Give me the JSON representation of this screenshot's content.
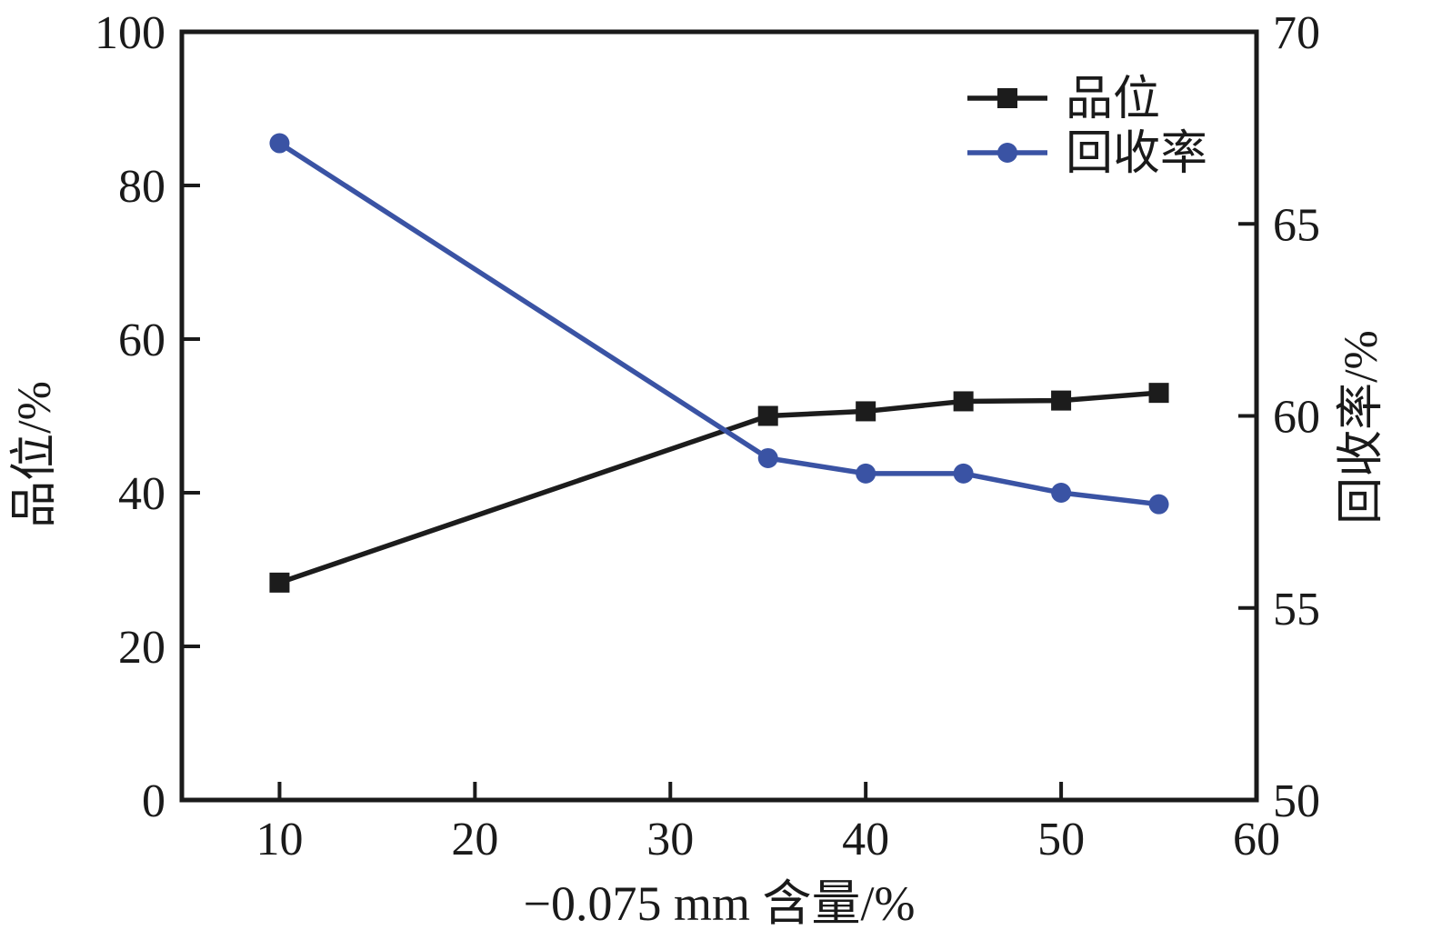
{
  "chart_data": {
    "type": "line",
    "title": "",
    "xlabel": "−0.075 mm 含量/%",
    "ylabel_left": "品位/%",
    "ylabel_right": "回收率/%",
    "xlim": [
      5,
      60
    ],
    "ylim_left": [
      0,
      100
    ],
    "ylim_right": [
      50,
      70
    ],
    "xticks": [
      10,
      20,
      30,
      40,
      50,
      60
    ],
    "yticks_left": [
      0,
      20,
      40,
      60,
      80,
      100
    ],
    "yticks_right": [
      50,
      55,
      60,
      65,
      70
    ],
    "grid": false,
    "legend_position": "upper-right-inside",
    "x": [
      10,
      35,
      40,
      45,
      50,
      55
    ],
    "series": [
      {
        "key": "grade",
        "name": "品位",
        "axis": "left",
        "marker": "square",
        "color": "#1c1c1c",
        "values": [
          28.3,
          50.0,
          50.6,
          51.9,
          52.0,
          53.0
        ]
      },
      {
        "key": "recovery",
        "name": "回收率",
        "axis": "right",
        "marker": "circle",
        "color": "#3a53a4",
        "values": [
          67.1,
          58.9,
          58.5,
          58.5,
          58.0,
          57.7
        ]
      }
    ],
    "axis_color": "#1a1a1a",
    "background_color": "#ffffff"
  }
}
